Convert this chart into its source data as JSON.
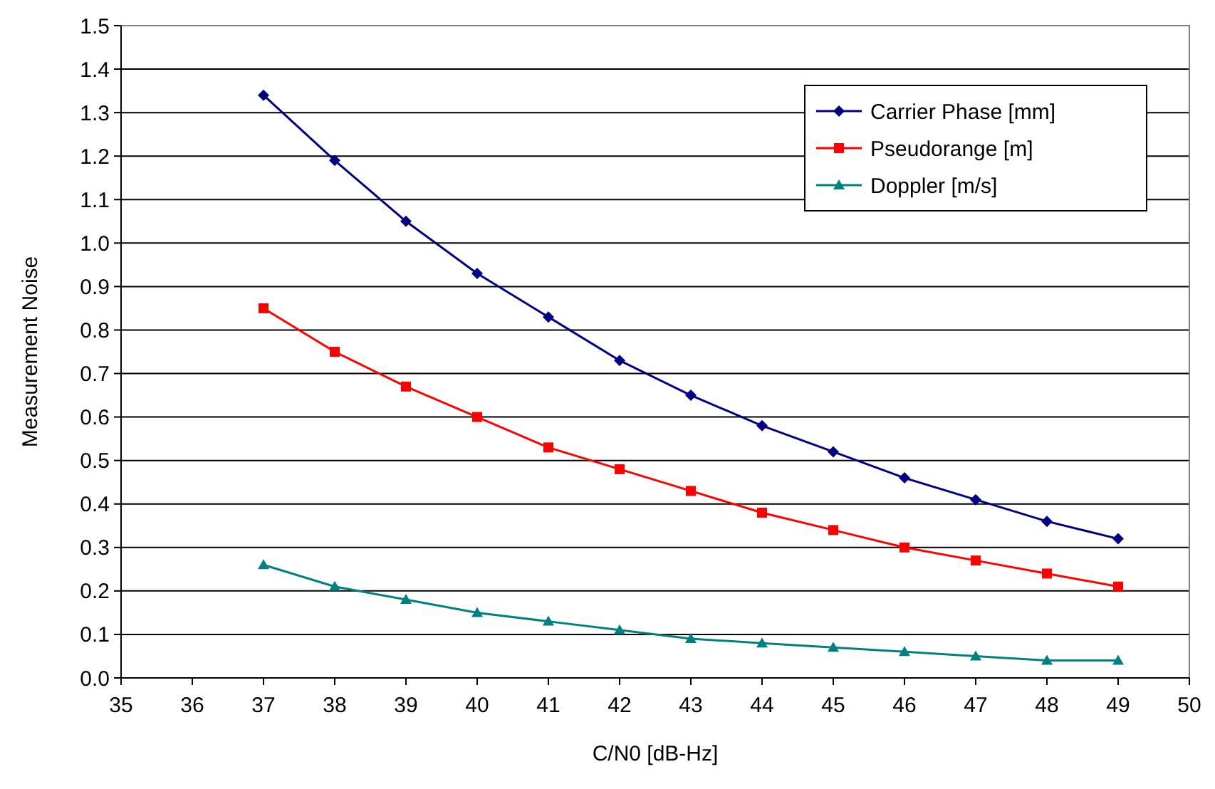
{
  "chart_data": {
    "type": "line",
    "xlabel": "C/N0 [dB-Hz]",
    "ylabel": "Measurement Noise",
    "x": [
      37,
      38,
      39,
      40,
      41,
      42,
      43,
      44,
      45,
      46,
      47,
      48,
      49
    ],
    "series": [
      {
        "name": "Carrier Phase [mm]",
        "color": "#000080",
        "marker": "diamond",
        "values": [
          1.34,
          1.19,
          1.05,
          0.93,
          0.83,
          0.73,
          0.65,
          0.58,
          0.52,
          0.46,
          0.41,
          0.36,
          0.32
        ]
      },
      {
        "name": "Pseudorange [m]",
        "color": "#ff0000",
        "marker": "square",
        "values": [
          0.85,
          0.75,
          0.67,
          0.6,
          0.53,
          0.48,
          0.43,
          0.38,
          0.34,
          0.3,
          0.27,
          0.24,
          0.21
        ]
      },
      {
        "name": "Doppler [m/s]",
        "color": "#008080",
        "marker": "triangle",
        "values": [
          0.26,
          0.21,
          0.18,
          0.15,
          0.13,
          0.11,
          0.09,
          0.08,
          0.07,
          0.06,
          0.05,
          0.04,
          0.04
        ]
      }
    ],
    "xlim": [
      35,
      50
    ],
    "xticks": [
      35,
      36,
      37,
      38,
      39,
      40,
      41,
      42,
      43,
      44,
      45,
      46,
      47,
      48,
      49,
      50
    ],
    "ylim": [
      0,
      1.5
    ],
    "yticks": [
      {
        "value": 0,
        "label": "0.0"
      },
      {
        "value": 0.1,
        "label": "0.1"
      },
      {
        "value": 0.2,
        "label": "0.2"
      },
      {
        "value": 0.3,
        "label": "0.3"
      },
      {
        "value": 0.4,
        "label": "0.4"
      },
      {
        "value": 0.5,
        "label": "0.5"
      },
      {
        "value": 0.6,
        "label": "0.6"
      },
      {
        "value": 0.7,
        "label": "0.7"
      },
      {
        "value": 0.8,
        "label": "0.8"
      },
      {
        "value": 0.9,
        "label": "0.9"
      },
      {
        "value": 1,
        "label": "1.0"
      },
      {
        "value": 1.1,
        "label": "1.1"
      },
      {
        "value": 1.2,
        "label": "1.2"
      },
      {
        "value": 1.3,
        "label": "1.3"
      },
      {
        "value": 1.4,
        "label": "1.4"
      },
      {
        "value": 1.5,
        "label": "1.5"
      }
    ],
    "grid": "y",
    "legend": "top right",
    "line_style": "solid"
  }
}
